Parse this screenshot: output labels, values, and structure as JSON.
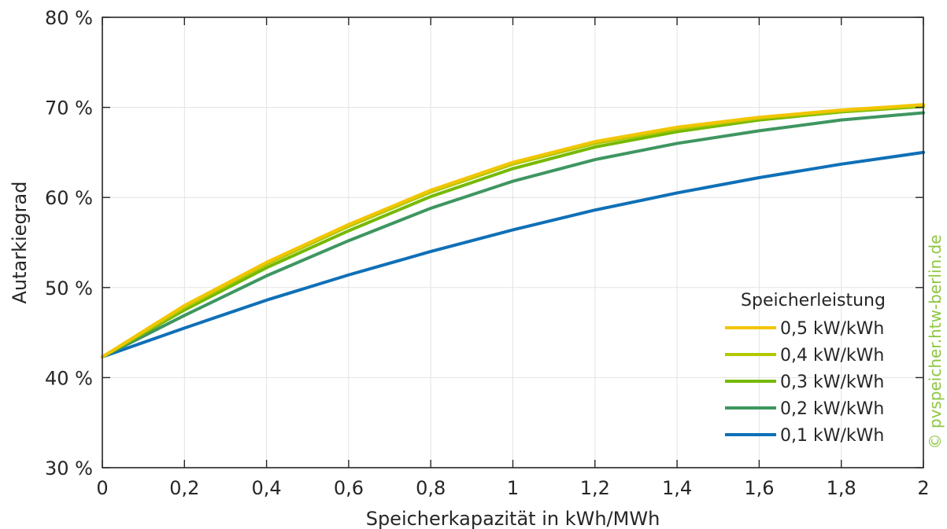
{
  "chart_data": {
    "type": "line",
    "xlabel": "Speicherkapazität in kWh/MWh",
    "ylabel": "Autarkiegrad",
    "xlim": [
      0,
      2
    ],
    "ylim": [
      30,
      80
    ],
    "x_ticks": [
      "0",
      "0,2",
      "0,4",
      "0,6",
      "0,8",
      "1",
      "1,2",
      "1,4",
      "1,6",
      "1,8",
      "2"
    ],
    "y_ticks": [
      "30 %",
      "40 %",
      "50 %",
      "60 %",
      "70 %",
      "80 %"
    ],
    "grid": true,
    "legend_title": "Speicherleistung",
    "legend_position": "bottom-right",
    "x": [
      0,
      0.2,
      0.4,
      0.6,
      0.8,
      1.0,
      1.2,
      1.4,
      1.6,
      1.8,
      2.0
    ],
    "series": [
      {
        "name": "0,5 kW/kWh",
        "color": "#f2c500",
        "values": [
          42.3,
          48.0,
          52.8,
          57.0,
          60.8,
          63.9,
          66.2,
          67.8,
          68.9,
          69.7,
          70.3
        ]
      },
      {
        "name": "0,4 kW/kWh",
        "color": "#b4c800",
        "values": [
          42.3,
          47.8,
          52.6,
          56.8,
          60.6,
          63.7,
          66.0,
          67.6,
          68.8,
          69.6,
          70.2
        ]
      },
      {
        "name": "0,3 kW/kWh",
        "color": "#76b900",
        "values": [
          42.3,
          47.5,
          52.2,
          56.3,
          60.1,
          63.2,
          65.6,
          67.3,
          68.6,
          69.5,
          70.1
        ]
      },
      {
        "name": "0,2 kW/kWh",
        "color": "#3e9660",
        "values": [
          42.3,
          46.9,
          51.3,
          55.2,
          58.8,
          61.8,
          64.2,
          66.0,
          67.4,
          68.6,
          69.4
        ]
      },
      {
        "name": "0,1 kW/kWh",
        "color": "#0f70b7",
        "values": [
          42.3,
          45.5,
          48.6,
          51.4,
          54.0,
          56.4,
          58.6,
          60.5,
          62.2,
          63.7,
          65.0
        ]
      }
    ]
  },
  "watermark": {
    "text": "© pvspeicher.htw-berlin.de",
    "color": "#8cc63f"
  }
}
